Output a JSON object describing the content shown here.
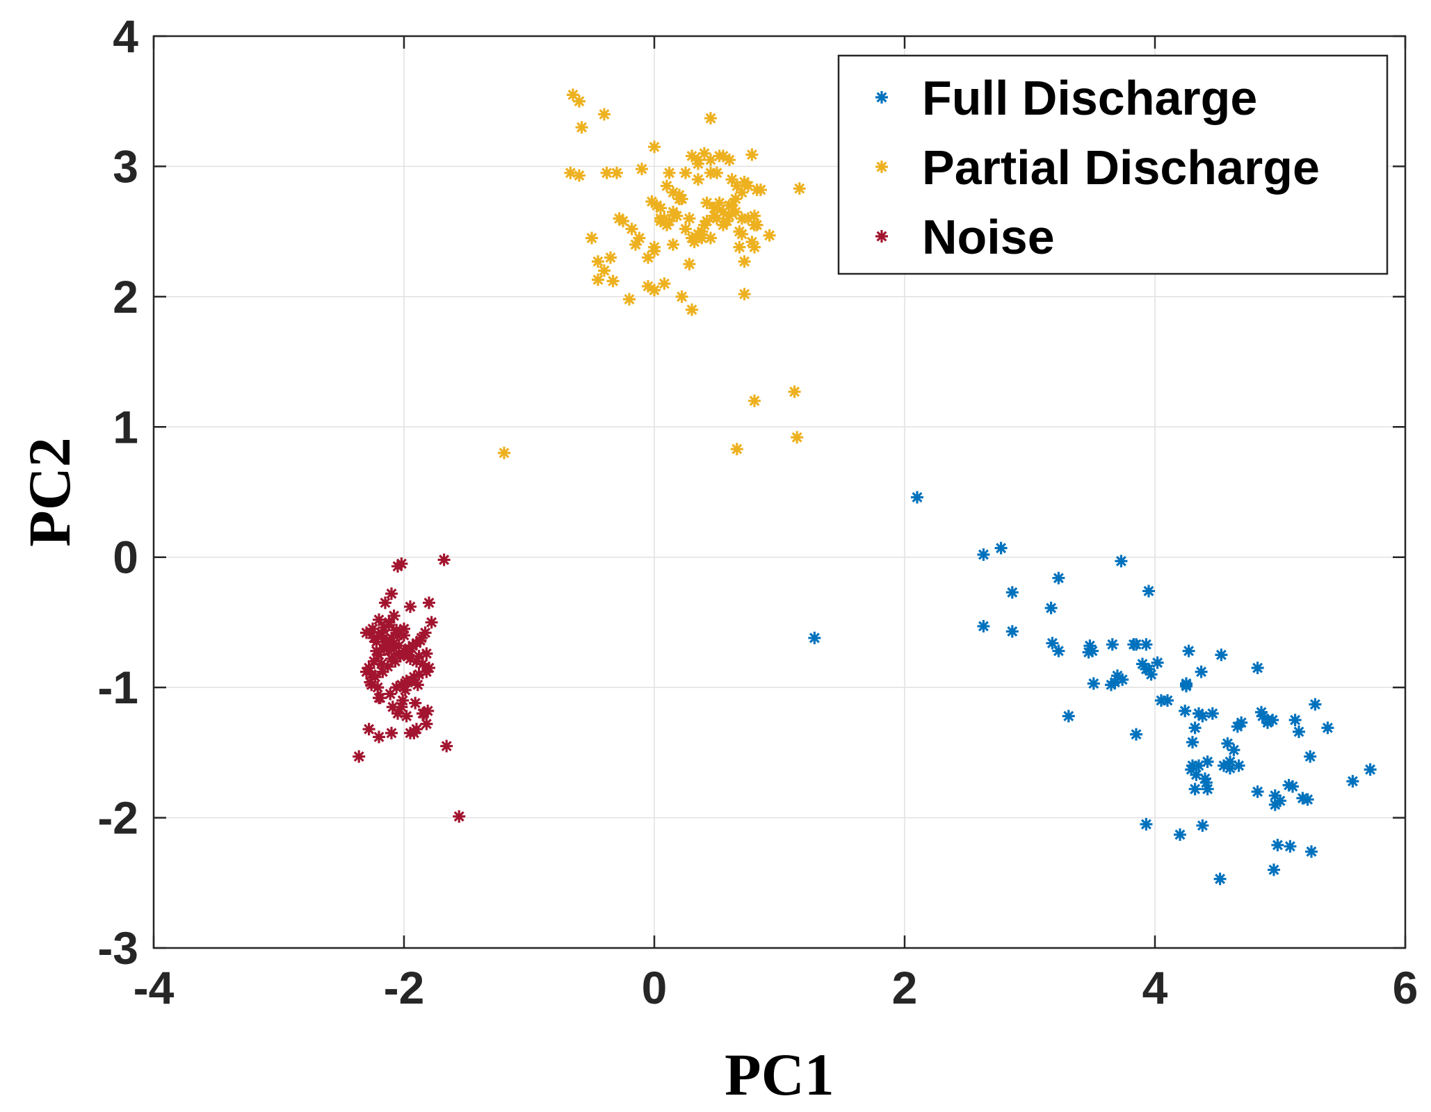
{
  "chart_data": {
    "type": "scatter",
    "title": "",
    "xlabel": "PC1",
    "ylabel": "PC2",
    "xlim": [
      -4,
      6
    ],
    "ylim": [
      -3,
      4
    ],
    "xticks": [
      -4,
      -2,
      0,
      2,
      4,
      6
    ],
    "yticks": [
      -3,
      -2,
      -1,
      0,
      1,
      2,
      3,
      4
    ],
    "xtick_labels": [
      "-4",
      "-2",
      "0",
      "2",
      "4",
      "6"
    ],
    "ytick_labels": [
      "-3",
      "-2",
      "-1",
      "0",
      "1",
      "2",
      "3",
      "4"
    ],
    "grid": true,
    "marker": "*",
    "legend_position": "top-right",
    "series": [
      {
        "name": "Full Discharge",
        "color": "#0072BD",
        "x": [
          2.1,
          1.28,
          2.63,
          2.77,
          2.63,
          2.86,
          2.86,
          3.23,
          3.17,
          3.18,
          3.23,
          3.31,
          3.48,
          3.5,
          3.51,
          3.66,
          3.65,
          3.7,
          3.74,
          3.73,
          3.83,
          3.85,
          3.9,
          3.93,
          3.95,
          3.93,
          3.97,
          4.02,
          4.05,
          4.1,
          4.24,
          4.25,
          4.27,
          4.25,
          4.3,
          4.32,
          4.37,
          4.35,
          4.38,
          4.42,
          4.41,
          4.42,
          4.53,
          4.58,
          4.63,
          4.67,
          4.66,
          4.69,
          4.82,
          4.85,
          4.86,
          4.9,
          4.94,
          5.12,
          5.15,
          5.24,
          5.28,
          5.22,
          5.38,
          5.58,
          5.72,
          3.85,
          4.3,
          4.35,
          4.46,
          4.4,
          4.33,
          4.32,
          4.29,
          4.55,
          4.6,
          4.82,
          4.96,
          4.96,
          5.0,
          5.07,
          5.1,
          5.18,
          3.93,
          4.2,
          4.38,
          4.98,
          5.08,
          5.25,
          4.95,
          4.52,
          4.25,
          3.68,
          3.47,
          3.95,
          4.6,
          4.9
        ],
        "y": [
          0.46,
          -0.62,
          0.02,
          0.07,
          -0.53,
          -0.27,
          -0.57,
          -0.16,
          -0.39,
          -0.66,
          -0.72,
          -1.22,
          -0.68,
          -0.72,
          -0.97,
          -0.67,
          -0.98,
          -0.91,
          -0.94,
          -0.03,
          -0.67,
          -0.67,
          -0.82,
          -0.67,
          -0.26,
          -0.86,
          -0.9,
          -0.81,
          -1.1,
          -1.1,
          -1.18,
          -0.99,
          -0.72,
          -0.98,
          -1.42,
          -1.31,
          -0.88,
          -1.2,
          -1.22,
          -1.57,
          -1.73,
          -1.78,
          -0.75,
          -1.43,
          -1.48,
          -1.6,
          -1.3,
          -1.27,
          -0.85,
          -1.19,
          -1.22,
          -1.25,
          -1.25,
          -1.25,
          -1.34,
          -1.53,
          -1.13,
          -1.86,
          -1.31,
          -1.72,
          -1.63,
          -1.36,
          -1.6,
          -1.6,
          -1.2,
          -1.7,
          -1.67,
          -1.78,
          -1.63,
          -1.6,
          -1.57,
          -1.8,
          -1.83,
          -1.9,
          -1.87,
          -1.75,
          -1.76,
          -1.85,
          -2.05,
          -2.13,
          -2.06,
          -2.21,
          -2.22,
          -2.26,
          -2.4,
          -2.47,
          -0.97,
          -0.96,
          -0.73,
          -0.86,
          -1.62,
          -1.27
        ]
      },
      {
        "name": "Partial Discharge",
        "color": "#EDB120",
        "x": [
          -0.65,
          -0.6,
          -0.58,
          -0.67,
          -0.6,
          -0.4,
          -0.38,
          -0.3,
          -0.33,
          -0.28,
          -0.1,
          0.0,
          -0.18,
          -0.12,
          -0.05,
          0.0,
          0.05,
          0.08,
          0.1,
          0.12,
          0.15,
          0.2,
          0.25,
          0.3,
          0.35,
          0.4,
          0.45,
          0.5,
          0.55,
          0.6,
          0.65,
          0.7,
          0.75,
          0.8,
          0.85,
          0.45,
          0.48,
          0.5,
          0.52,
          0.55,
          0.58,
          0.6,
          0.62,
          0.65,
          0.68,
          0.7,
          0.72,
          0.75,
          0.78,
          0.8,
          0.82,
          0.35,
          0.38,
          0.4,
          0.42,
          0.3,
          0.32,
          0.15,
          0.18,
          0.2,
          0.1,
          0.12,
          0.05,
          0.02,
          -0.02,
          0.0,
          0.08,
          -0.25,
          -0.15,
          -0.35,
          -0.4,
          -0.45,
          -0.5,
          -0.2,
          0.22,
          0.28,
          0.45,
          0.55,
          0.72,
          0.78,
          0.92,
          1.16,
          0.3,
          0.45,
          0.52,
          0.6,
          0.68,
          0.72,
          0.82,
          0.42,
          0.48,
          0.35,
          0.25,
          0.05,
          0.0,
          -0.05,
          0.22,
          0.35,
          0.5,
          0.62,
          0.66,
          -0.45,
          0.0,
          0.15,
          0.28,
          0.38,
          0.7,
          0.8,
          1.12,
          1.14,
          0.66,
          -1.2
        ],
        "y": [
          3.55,
          3.5,
          3.3,
          2.95,
          2.93,
          3.4,
          2.95,
          2.95,
          2.12,
          2.6,
          2.98,
          3.15,
          2.52,
          2.45,
          2.3,
          2.05,
          2.58,
          2.6,
          2.85,
          2.95,
          2.8,
          2.75,
          2.95,
          3.08,
          3.02,
          3.1,
          3.05,
          2.6,
          2.65,
          2.7,
          2.75,
          2.8,
          2.6,
          2.55,
          2.82,
          2.45,
          2.62,
          2.68,
          2.72,
          2.55,
          2.58,
          2.62,
          2.7,
          2.65,
          2.5,
          2.48,
          2.88,
          2.85,
          2.42,
          2.38,
          2.55,
          2.48,
          2.5,
          2.55,
          2.58,
          2.45,
          2.42,
          2.65,
          2.62,
          2.78,
          2.55,
          2.58,
          2.68,
          2.7,
          2.73,
          2.05,
          2.1,
          2.58,
          2.4,
          2.3,
          2.2,
          2.13,
          2.45,
          1.98,
          2.0,
          2.25,
          3.37,
          3.08,
          2.27,
          3.09,
          2.47,
          2.83,
          1.9,
          2.95,
          3.08,
          3.05,
          2.38,
          2.02,
          2.82,
          2.72,
          2.68,
          2.9,
          2.52,
          2.6,
          2.35,
          2.08,
          2.75,
          3.05,
          2.95,
          2.9,
          2.85,
          2.27,
          2.38,
          2.4,
          2.6,
          2.45,
          2.6,
          2.62,
          1.27,
          0.92,
          0.83,
          0.8
        ],
        "extra_x": [
          0.8
        ],
        "extra_y": [
          1.2
        ]
      },
      {
        "name": "Noise",
        "color": "#A2142F",
        "x": [
          -2.02,
          -2.05,
          -1.68,
          -2.1,
          -2.15,
          -2.08,
          -2.12,
          -2.0,
          -1.95,
          -2.2,
          -2.25,
          -2.18,
          -2.22,
          -2.05,
          -2.1,
          -2.15,
          -2.08,
          -2.12,
          -2.0,
          -1.95,
          -1.9,
          -1.85,
          -1.8,
          -1.82,
          -1.88,
          -1.92,
          -1.98,
          -2.02,
          -2.06,
          -2.14,
          -2.16,
          -2.2,
          -2.24,
          -2.28,
          -2.3,
          -2.26,
          -2.18,
          -2.1,
          -2.04,
          -1.96,
          -1.9,
          -1.86,
          -1.8,
          -1.78,
          -1.83,
          -1.87,
          -1.93,
          -1.97,
          -2.03,
          -2.07,
          -2.13,
          -2.17,
          -2.23,
          -2.27,
          -2.21,
          -2.11,
          -2.01,
          -1.91,
          -1.81,
          -1.84,
          -2.09,
          -2.19,
          -1.99,
          -1.89,
          -1.94,
          -2.0,
          -2.06,
          -2.12,
          -2.18,
          -2.24,
          -2.3,
          -2.08,
          -2.16,
          -2.04,
          -1.96,
          -1.88,
          -1.82,
          -2.22,
          -2.14,
          -2.26,
          -2.2,
          -2.05,
          -1.95,
          -1.9,
          -1.82,
          -1.85,
          -1.92,
          -2.28,
          -2.36,
          -1.66,
          -1.56,
          -2.02,
          -2.1,
          -2.2,
          -1.98
        ],
        "y": [
          -0.05,
          -0.07,
          -0.02,
          -0.28,
          -0.35,
          -0.45,
          -0.5,
          -0.55,
          -0.38,
          -0.48,
          -0.55,
          -0.6,
          -0.65,
          -0.6,
          -0.62,
          -0.68,
          -0.7,
          -0.72,
          -0.75,
          -0.78,
          -0.8,
          -0.82,
          -0.85,
          -0.88,
          -0.9,
          -0.92,
          -0.95,
          -0.98,
          -1.0,
          -0.65,
          -0.7,
          -0.75,
          -0.8,
          -0.85,
          -0.88,
          -0.9,
          -0.82,
          -0.78,
          -0.74,
          -0.7,
          -0.66,
          -0.62,
          -0.35,
          -0.5,
          -0.58,
          -0.64,
          -0.68,
          -0.72,
          -0.76,
          -0.8,
          -0.84,
          -0.88,
          -0.92,
          -0.96,
          -1.0,
          -1.05,
          -1.1,
          -1.12,
          -1.18,
          -1.2,
          -1.15,
          -1.08,
          -1.02,
          -0.98,
          -0.95,
          -0.6,
          -0.56,
          -0.52,
          -0.58,
          -0.62,
          -0.58,
          -0.66,
          -0.54,
          -0.68,
          -0.72,
          -0.76,
          -0.74,
          -0.72,
          -0.64,
          -0.98,
          -1.08,
          -1.2,
          -1.35,
          -1.32,
          -1.28,
          -1.2,
          -1.35,
          -1.32,
          -1.53,
          -1.45,
          -1.99,
          -1.15,
          -1.35,
          -1.38,
          -1.22
        ]
      }
    ]
  }
}
